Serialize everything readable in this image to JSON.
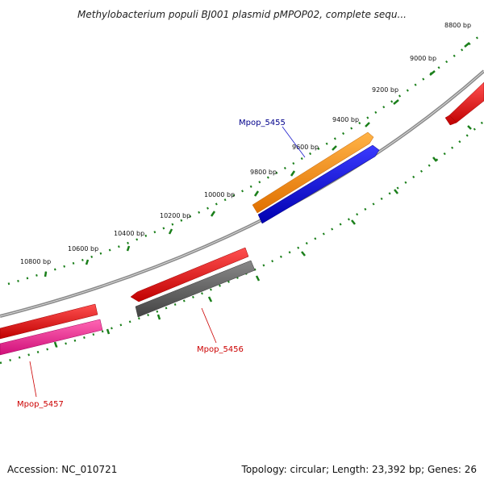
{
  "title": "Methylobacterium populi BJ001 plasmid pMPOP02, complete sequ...",
  "footer": {
    "accession": "Accession: NC_010721",
    "summary": "Topology: circular; Length: 23,392 bp; Genes: 26"
  },
  "map": {
    "topology": "circular",
    "length_bp": 23392,
    "gene_count": 26,
    "tick_labels": [
      "8800 bp",
      "9000 bp",
      "9200 bp",
      "9400 bp",
      "9600 bp",
      "9800 bp",
      "10000 bp",
      "10200 bp",
      "10400 bp",
      "10600 bp",
      "10800 bp"
    ],
    "tick_color": "#1a7f1a",
    "backbone_color": "#8a8a8a"
  },
  "features": [
    {
      "label": "Mpop_5455",
      "color": "#ff8c00",
      "label_color": "#00008b",
      "strand": "+"
    },
    {
      "label": "",
      "color": "#0000ee",
      "strand": "+"
    },
    {
      "label": "Mpop_5456",
      "color": "#ee0000",
      "label_color": "#cc0000",
      "strand": "-"
    },
    {
      "label": "",
      "color": "#555555",
      "strand": "-"
    },
    {
      "label": "Mpop_5457",
      "color": "#ee0000",
      "label_color": "#cc0000",
      "strand": "-"
    },
    {
      "label": "",
      "color": "#ff1493",
      "strand": "-"
    },
    {
      "label": "",
      "color": "#ee0000",
      "strand": "+"
    }
  ]
}
